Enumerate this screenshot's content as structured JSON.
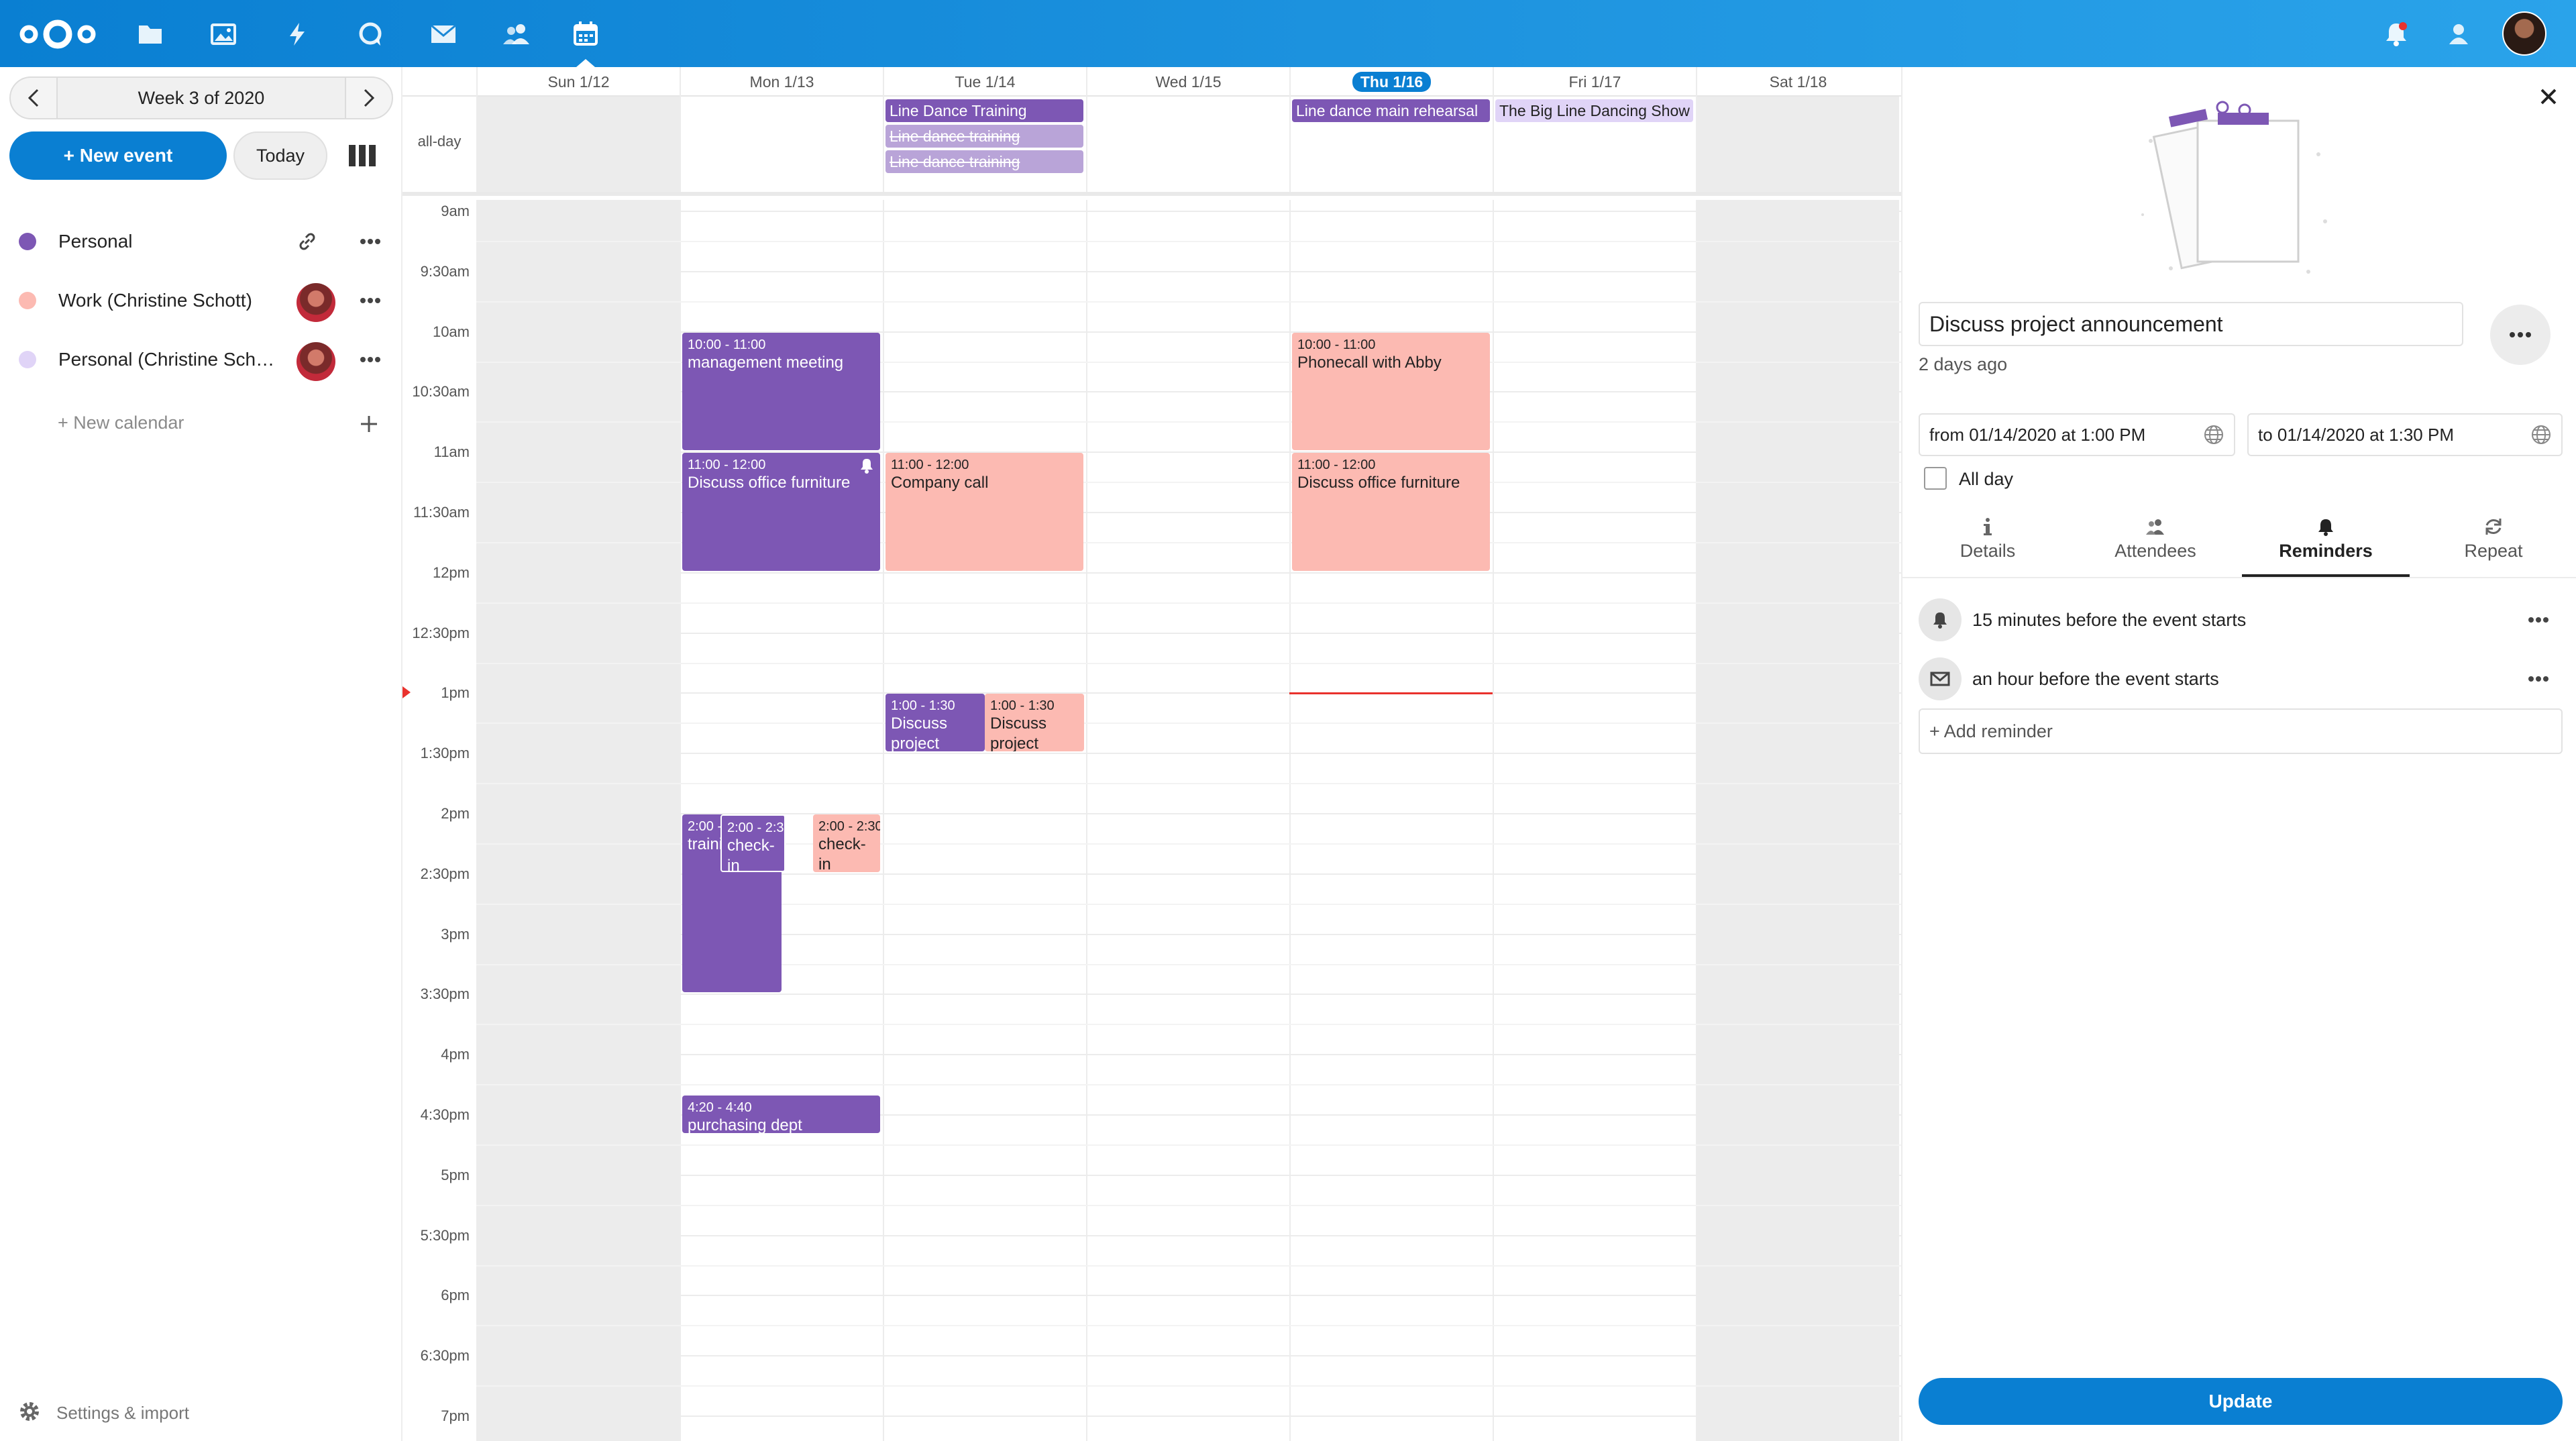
{
  "colors": {
    "header": "#0a7fd2",
    "primary": "#0a7fd2",
    "personal": "#7d57b4",
    "work": "#fcbab2",
    "personal_shared": "#e0d4f7",
    "now_line": "#e9322d"
  },
  "header": {
    "apps": [
      {
        "name": "logo",
        "icon": "nextcloud-logo-icon"
      },
      {
        "name": "files",
        "icon": "folder-icon"
      },
      {
        "name": "photos",
        "icon": "image-icon"
      },
      {
        "name": "activity",
        "icon": "lightning-icon"
      },
      {
        "name": "talk",
        "icon": "chat-bubble-icon"
      },
      {
        "name": "mail",
        "icon": "envelope-icon"
      },
      {
        "name": "contacts",
        "icon": "contacts-icon"
      },
      {
        "name": "calendar",
        "icon": "calendar-icon",
        "active": true
      }
    ],
    "right_icons": [
      "notifications-icon",
      "contacts-menu-icon",
      "user-avatar"
    ]
  },
  "sidebar": {
    "week_label": "Week 3 of 2020",
    "new_event": "+ New event",
    "today": "Today",
    "calendars": [
      {
        "label": "Personal",
        "color": "#7d57b4",
        "shared": false
      },
      {
        "label": "Work (Christine Schott)",
        "color": "#fcbab2",
        "shared": true
      },
      {
        "label": "Personal (Christine Scho...",
        "color": "#e0d4f7",
        "shared": true
      }
    ],
    "new_calendar": "+ New calendar",
    "settings": "Settings & import"
  },
  "calendar": {
    "allday_label": "all-day",
    "days": [
      "Sun 1/12",
      "Mon 1/13",
      "Tue 1/14",
      "Wed 1/15",
      "Thu 1/16",
      "Fri 1/17",
      "Sat 1/18"
    ],
    "today_index": 4,
    "weekend_indices": [
      0,
      6
    ],
    "time_labels": [
      "9am",
      "9:30am",
      "10am",
      "10:30am",
      "11am",
      "11:30am",
      "12pm",
      "12:30pm",
      "1pm",
      "1:30pm",
      "2pm",
      "2:30pm",
      "3pm",
      "3:30pm",
      "4pm",
      "4:30pm",
      "5pm",
      "5:30pm",
      "6pm",
      "6:30pm",
      "7pm"
    ],
    "allday_events": [
      {
        "title": "Line Dance Training",
        "day": 2,
        "row": 0,
        "style": "purple",
        "strike": false
      },
      {
        "title": "Line dance training",
        "day": 2,
        "row": 1,
        "style": "faded",
        "strike": true
      },
      {
        "title": "Line dance training",
        "day": 2,
        "row": 2,
        "style": "faded",
        "strike": true
      },
      {
        "title": "Line dance main rehearsal",
        "day": 4,
        "row": 0,
        "style": "purple",
        "strike": false
      },
      {
        "title": "The Big Line Dancing Show",
        "day": 5,
        "row": 0,
        "style": "lavender",
        "strike": false
      }
    ],
    "events": [
      {
        "time": "10:00 - 11:00",
        "title": "management meeting",
        "day": 1,
        "start": 10.0,
        "end": 11.0,
        "col": 0,
        "cols": 1,
        "style": "purple",
        "bell": false
      },
      {
        "time": "11:00 - 12:00",
        "title": "Discuss office furniture",
        "day": 1,
        "start": 11.0,
        "end": 12.0,
        "col": 0,
        "cols": 1,
        "style": "purple",
        "bell": true
      },
      {
        "time": "11:00 - 12:00",
        "title": "Company call",
        "day": 2,
        "start": 11.0,
        "end": 12.0,
        "col": 0,
        "cols": 1,
        "style": "pink",
        "bell": false
      },
      {
        "time": "10:00 - 11:00",
        "title": "Phonecall with Abby",
        "day": 4,
        "start": 10.0,
        "end": 11.0,
        "col": 0,
        "cols": 1,
        "style": "pink",
        "bell": false
      },
      {
        "time": "11:00 - 12:00",
        "title": "Discuss office furniture",
        "day": 4,
        "start": 11.0,
        "end": 12.0,
        "col": 0,
        "cols": 1,
        "style": "pink",
        "bell": false
      },
      {
        "time": "1:00 - 1:30",
        "title": "Discuss project announcement",
        "day": 2,
        "start": 13.0,
        "end": 13.5,
        "col": 0,
        "cols": 2,
        "style": "purple",
        "bell": false
      },
      {
        "time": "1:00 - 1:30",
        "title": "Discuss project",
        "day": 2,
        "start": 13.0,
        "end": 13.5,
        "col": 1,
        "cols": 2,
        "style": "pink",
        "bell": false
      },
      {
        "time": "2:00 - 3:30",
        "title": "training",
        "day": 1,
        "start": 14.0,
        "end": 15.5,
        "col": 0,
        "cols": 2,
        "style": "purple",
        "bell": false
      },
      {
        "time": "2:00 - 2:30",
        "title": "check-in",
        "day": 1,
        "start": 14.0,
        "end": 14.5,
        "col": 0.62,
        "cols": 3.2,
        "style": "purple",
        "bell": false,
        "outlined": true
      },
      {
        "time": "2:00 - 2:30",
        "title": "check-in",
        "day": 1,
        "start": 14.0,
        "end": 14.5,
        "col": 2.1,
        "cols": 3.2,
        "style": "pink",
        "bell": false
      },
      {
        "time": "4:20 - 4:40",
        "title": "purchasing dept",
        "day": 1,
        "start": 16.333,
        "end": 16.667,
        "col": 0,
        "cols": 1,
        "style": "purple",
        "bell": false
      }
    ],
    "now_time": 13.0
  },
  "panel": {
    "title": "Discuss project announcement",
    "modified": "2 days ago",
    "from": "from 01/14/2020 at 1:00 PM",
    "to": "to 01/14/2020 at 1:30 PM",
    "allday_label": "All day",
    "tabs": [
      {
        "label": "Details",
        "icon": "info-icon"
      },
      {
        "label": "Attendees",
        "icon": "attendees-icon"
      },
      {
        "label": "Reminders",
        "icon": "bell-icon",
        "active": true
      },
      {
        "label": "Repeat",
        "icon": "repeat-icon"
      }
    ],
    "reminders": [
      {
        "text": "15 minutes before the event starts",
        "icon": "bell-icon"
      },
      {
        "text": "an hour before the event starts",
        "icon": "envelope-icon"
      }
    ],
    "add_reminder": "+ Add reminder",
    "update": "Update"
  }
}
